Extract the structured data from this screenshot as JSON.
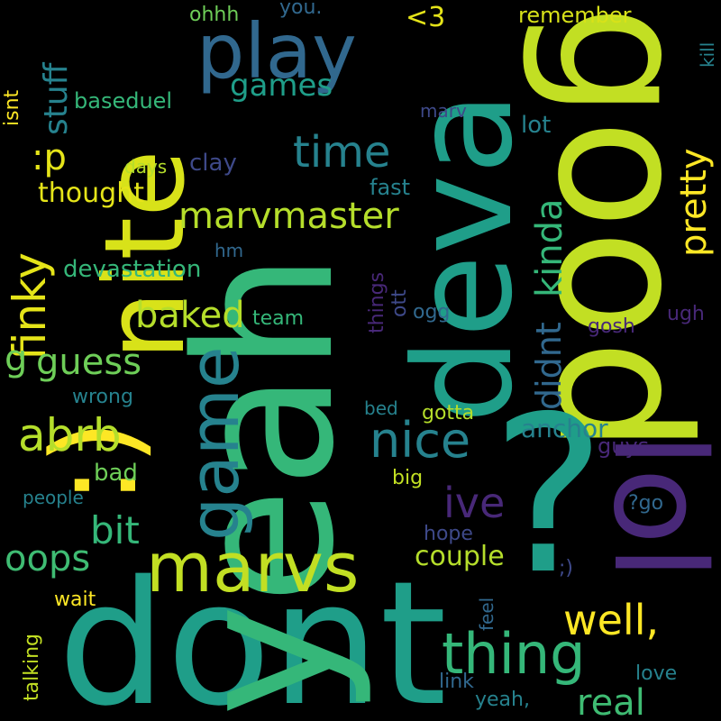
{
  "background": "#000000",
  "palette": [
    "#fde725",
    "#b5de2b",
    "#6ece58",
    "#35b779",
    "#1f9e89",
    "#26828e",
    "#31688e",
    "#3e4989",
    "#482878",
    "#440154"
  ],
  "words": [
    {
      "text": "dont",
      "color": "#1f9e89"
    },
    {
      "text": "yeah",
      "color": "#35b779"
    },
    {
      "text": "good",
      "color": "#c2df23"
    },
    {
      "text": "deva",
      "color": "#1f9e89"
    },
    {
      "text": "?",
      "color": "#1f9e89"
    },
    {
      "text": "lol",
      "color": "#482878"
    },
    {
      "text": "nite",
      "color": "#d8e219"
    },
    {
      "text": ":)",
      "color": "#fde725"
    },
    {
      "text": "play",
      "color": "#31688e"
    },
    {
      "text": "game",
      "color": "#26828e"
    },
    {
      "text": "marvs",
      "color": "#c2df23"
    },
    {
      "text": "thing",
      "color": "#35b779"
    },
    {
      "text": "nice",
      "color": "#26828e"
    },
    {
      "text": "well,",
      "color": "#fde725"
    },
    {
      "text": "abrb",
      "color": "#b5de2b"
    },
    {
      "text": "finky",
      "color": "#e5e419"
    },
    {
      "text": "time",
      "color": "#26828e"
    },
    {
      "text": "marvmaster",
      "color": "#b5de2b"
    },
    {
      "text": "pretty",
      "color": "#fde725"
    },
    {
      "text": "kinda",
      "color": "#35b779"
    },
    {
      "text": "baked",
      "color": "#b5de2b"
    },
    {
      "text": "guess",
      "color": "#6ece58"
    },
    {
      "text": "ive",
      "color": "#482878"
    },
    {
      "text": "bit",
      "color": "#35b779"
    },
    {
      "text": "oops",
      "color": "#3fbc73"
    },
    {
      "text": "real",
      "color": "#3fbc73"
    },
    {
      "text": "games",
      "color": "#1f9e89"
    },
    {
      "text": "stuff",
      "color": "#26828e"
    },
    {
      "text": ":p",
      "color": "#e5e419"
    },
    {
      "text": "thought",
      "color": "#e5e419"
    },
    {
      "text": "didnt",
      "color": "#31688e"
    },
    {
      "text": "g",
      "color": "#6ece58"
    },
    {
      "text": "devastation",
      "color": "#35b779"
    },
    {
      "text": "couple",
      "color": "#b5de2b"
    },
    {
      "text": "anchor",
      "color": "#26828e"
    },
    {
      "text": "<3",
      "color": "#e5e419"
    },
    {
      "text": "remember",
      "color": "#d8e219"
    },
    {
      "text": "fast",
      "color": "#26828e"
    },
    {
      "text": "clay",
      "color": "#3e4989"
    },
    {
      "text": "lot",
      "color": "#26828e"
    },
    {
      "text": "baseduel",
      "color": "#35b779"
    },
    {
      "text": "ohhh",
      "color": "#6ece58"
    },
    {
      "text": "you.",
      "color": "#31688e"
    },
    {
      "text": "isnt",
      "color": "#fde725"
    },
    {
      "text": "marv",
      "color": "#3e4989"
    },
    {
      "text": "days",
      "color": "#b5de2b"
    },
    {
      "text": "hm",
      "color": "#31688e"
    },
    {
      "text": "things",
      "color": "#482878"
    },
    {
      "text": "team",
      "color": "#35b779"
    },
    {
      "text": "ott",
      "color": "#3e4989"
    },
    {
      "text": "ogg",
      "color": "#31688e"
    },
    {
      "text": "gosh",
      "color": "#482878"
    },
    {
      "text": "ugh",
      "color": "#482878"
    },
    {
      "text": "wrong",
      "color": "#26828e"
    },
    {
      "text": "bed",
      "color": "#26828e"
    },
    {
      "text": "gotta",
      "color": "#b5de2b"
    },
    {
      "text": "guys",
      "color": "#482878"
    },
    {
      "text": "bad",
      "color": "#6ece58"
    },
    {
      "text": "big",
      "color": "#c2df23"
    },
    {
      "text": "people",
      "color": "#26828e"
    },
    {
      "text": "?go",
      "color": "#31688e"
    },
    {
      "text": "hope",
      "color": "#3e4989"
    },
    {
      "text": ";)",
      "color": "#3e4989"
    },
    {
      "text": "wait",
      "color": "#fde725"
    },
    {
      "text": "talking",
      "color": "#c2df23"
    },
    {
      "text": "feel",
      "color": "#31688e"
    },
    {
      "text": "link",
      "color": "#31688e"
    },
    {
      "text": "yeah,",
      "color": "#26828e"
    },
    {
      "text": "love",
      "color": "#26828e"
    },
    {
      "text": "kill",
      "color": "#26828e"
    }
  ]
}
